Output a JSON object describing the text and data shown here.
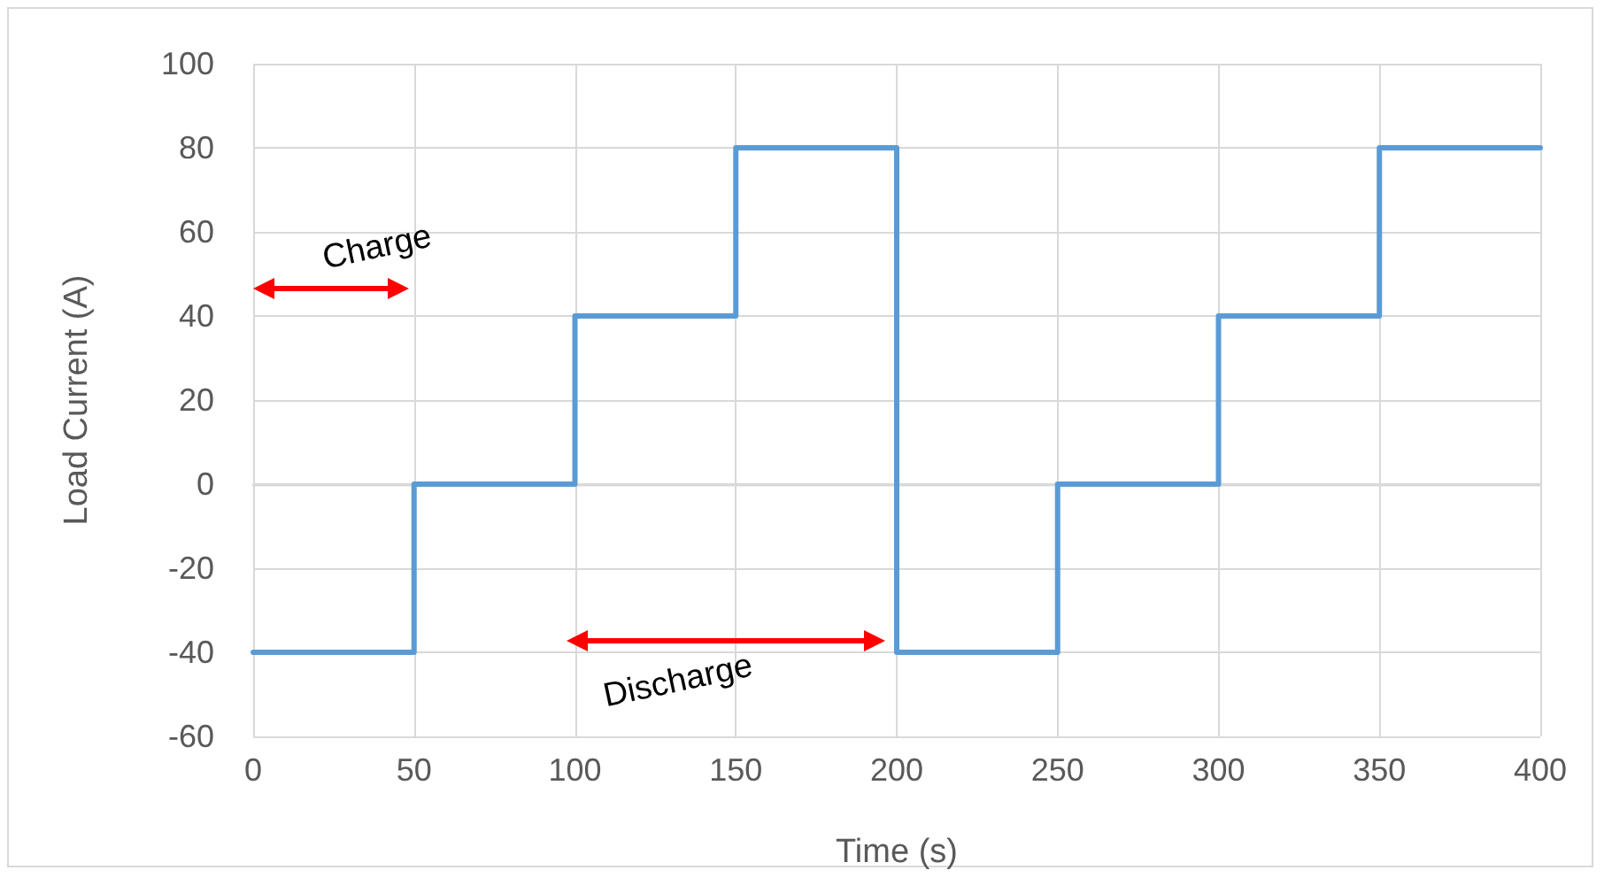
{
  "chart_data": {
    "type": "step",
    "xlabel": "Time (s)",
    "ylabel": "Load Current (A)",
    "x": [
      0,
      50,
      100,
      150,
      200,
      250,
      300,
      350,
      400
    ],
    "series": [
      {
        "color": "#5b9bd5",
        "values": [
          -40,
          0,
          40,
          80,
          -40,
          0,
          40,
          80,
          80
        ]
      }
    ],
    "xlim": [
      0,
      400
    ],
    "xticks": [
      0,
      50,
      100,
      150,
      200,
      250,
      300,
      350,
      400
    ],
    "ylim": [
      -60,
      100
    ],
    "yticks": [
      -60,
      -40,
      -20,
      0,
      20,
      40,
      60,
      80,
      100
    ],
    "grid": true,
    "marker": "none",
    "line_style": "solid",
    "annotations": [
      "Charge",
      "Discharge"
    ]
  }
}
